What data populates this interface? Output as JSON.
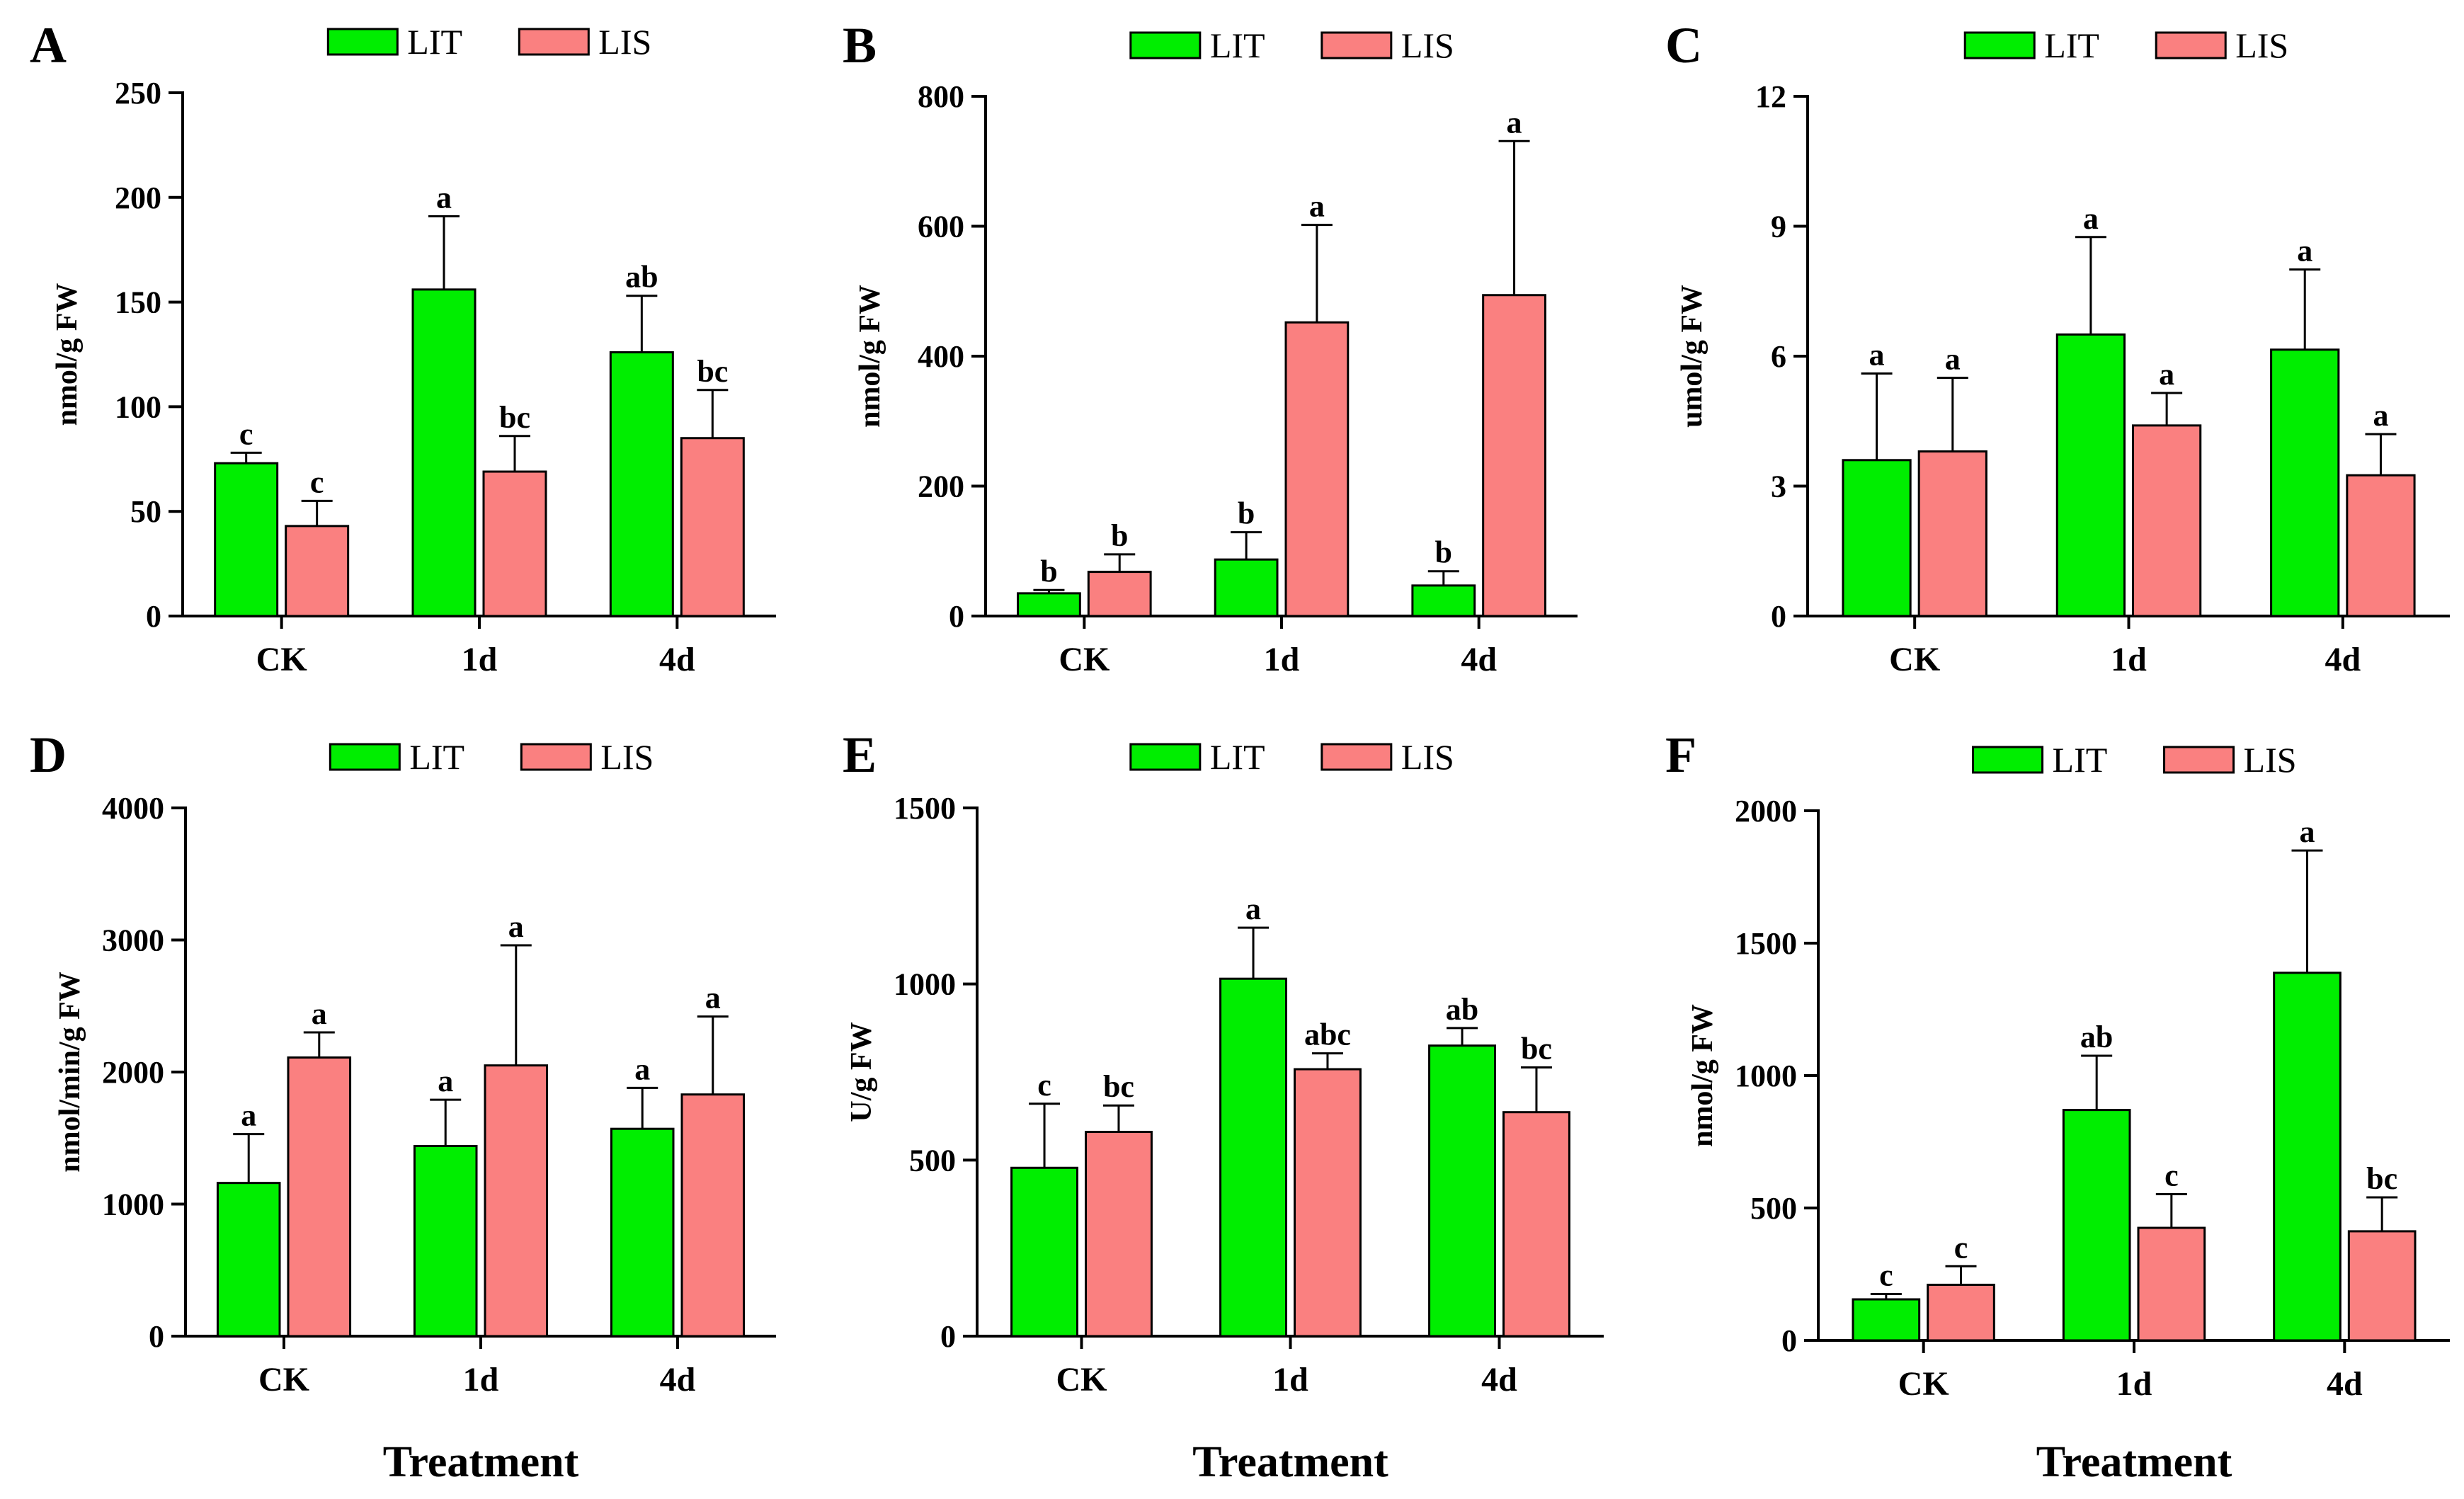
{
  "figure": {
    "x_title": "Treatment",
    "colors": {
      "LIT": "#00ee00",
      "LIS": "#fa8080",
      "axis": "#000000"
    }
  },
  "chart_data": [
    {
      "panel": "A",
      "type": "bar",
      "ylabel": "nmol/g FW",
      "ylim": [
        0,
        250
      ],
      "yticks": [
        0,
        50,
        100,
        150,
        200,
        250
      ],
      "categories": [
        "CK",
        "1d",
        "4d"
      ],
      "legend": [
        "LIT",
        "LIS"
      ],
      "series": [
        {
          "name": "LIT",
          "values": [
            73,
            156,
            126
          ],
          "errors": [
            5,
            35,
            27
          ],
          "letters": [
            "c",
            "a",
            "ab"
          ]
        },
        {
          "name": "LIS",
          "values": [
            43,
            69,
            85
          ],
          "errors": [
            12,
            17,
            23
          ],
          "letters": [
            "c",
            "bc",
            "bc"
          ]
        }
      ]
    },
    {
      "panel": "B",
      "type": "bar",
      "ylabel": "nmol/g FW",
      "ylim": [
        0,
        800
      ],
      "yticks": [
        0,
        200,
        400,
        600,
        800
      ],
      "categories": [
        "CK",
        "1d",
        "4d"
      ],
      "legend": [
        "LIT",
        "LIS"
      ],
      "series": [
        {
          "name": "LIT",
          "values": [
            35,
            87,
            47
          ],
          "errors": [
            5,
            42,
            22
          ],
          "letters": [
            "b",
            "b",
            "b"
          ]
        },
        {
          "name": "LIS",
          "values": [
            68,
            452,
            494
          ],
          "errors": [
            27,
            150,
            237
          ],
          "letters": [
            "b",
            "a",
            "a"
          ]
        }
      ]
    },
    {
      "panel": "C",
      "type": "bar",
      "ylabel": "umol/g FW",
      "ylim": [
        0,
        12
      ],
      "yticks": [
        0,
        3,
        6,
        9,
        12
      ],
      "categories": [
        "CK",
        "1d",
        "4d"
      ],
      "legend": [
        "LIT",
        "LIS"
      ],
      "series": [
        {
          "name": "LIT",
          "values": [
            3.6,
            6.5,
            6.15
          ],
          "errors": [
            2.0,
            2.25,
            1.85
          ],
          "letters": [
            "a",
            "a",
            "a"
          ]
        },
        {
          "name": "LIS",
          "values": [
            3.8,
            4.4,
            3.25
          ],
          "errors": [
            1.7,
            0.75,
            0.95
          ],
          "letters": [
            "a",
            "a",
            "a"
          ]
        }
      ]
    },
    {
      "panel": "D",
      "type": "bar",
      "ylabel": "nmol/min/g FW",
      "ylim": [
        0,
        4000
      ],
      "yticks": [
        0,
        1000,
        2000,
        3000,
        4000
      ],
      "categories": [
        "CK",
        "1d",
        "4d"
      ],
      "legend": [
        "LIT",
        "LIS"
      ],
      "series": [
        {
          "name": "LIT",
          "values": [
            1160,
            1440,
            1570
          ],
          "errors": [
            370,
            350,
            310
          ],
          "letters": [
            "a",
            "a",
            "a"
          ]
        },
        {
          "name": "LIS",
          "values": [
            2110,
            2050,
            1830
          ],
          "errors": [
            190,
            910,
            590
          ],
          "letters": [
            "a",
            "a",
            "a"
          ]
        }
      ]
    },
    {
      "panel": "E",
      "type": "bar",
      "ylabel": "U/g FW",
      "ylim": [
        0,
        1500
      ],
      "yticks": [
        0,
        500,
        1000,
        1500
      ],
      "categories": [
        "CK",
        "1d",
        "4d"
      ],
      "legend": [
        "LIT",
        "LIS"
      ],
      "series": [
        {
          "name": "LIT",
          "values": [
            478,
            1015,
            825
          ],
          "errors": [
            182,
            145,
            50
          ],
          "letters": [
            "c",
            "a",
            "ab"
          ]
        },
        {
          "name": "LIS",
          "values": [
            580,
            758,
            636
          ],
          "errors": [
            75,
            45,
            127
          ],
          "letters": [
            "bc",
            "abc",
            "bc"
          ]
        }
      ]
    },
    {
      "panel": "F",
      "type": "bar",
      "ylabel": "nmol/g FW",
      "ylim": [
        0,
        2000
      ],
      "yticks": [
        0,
        500,
        1000,
        1500,
        2000
      ],
      "categories": [
        "CK",
        "1d",
        "4d"
      ],
      "legend": [
        "LIT",
        "LIS"
      ],
      "series": [
        {
          "name": "LIT",
          "values": [
            155,
            870,
            1388
          ],
          "errors": [
            20,
            205,
            462
          ],
          "letters": [
            "c",
            "ab",
            "a"
          ]
        },
        {
          "name": "LIS",
          "values": [
            210,
            425,
            412
          ],
          "errors": [
            70,
            127,
            128
          ],
          "letters": [
            "c",
            "c",
            "bc"
          ]
        }
      ]
    }
  ]
}
